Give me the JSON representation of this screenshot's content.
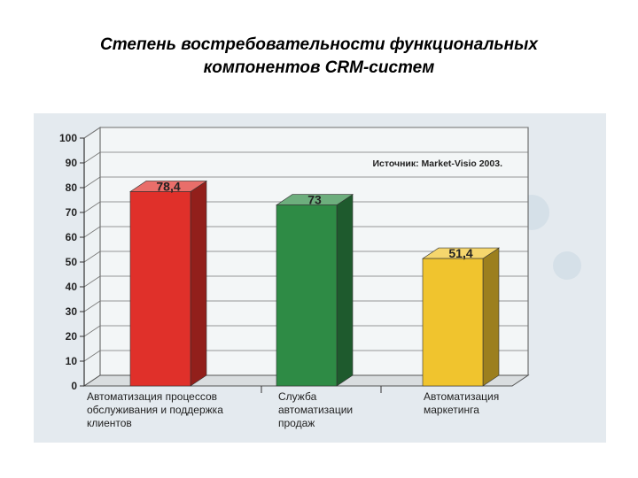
{
  "slide": {
    "title_line1": "Степень востребовательности функциональных",
    "title_line2": "компонентов CRM-систем"
  },
  "chart_data": {
    "type": "bar",
    "title": "",
    "source_note": "Источник: Market-Visio 2003.",
    "background_text": "CRM-систем",
    "categories": [
      [
        "Автоматизация процессов",
        "обслуживания и поддержка",
        "клиентов"
      ],
      [
        "Служба",
        "автоматизации",
        "продаж"
      ],
      [
        "Автоматизация",
        "маркетинга"
      ]
    ],
    "values": [
      78.4,
      73,
      51.4
    ],
    "value_labels": [
      "78,4",
      "73",
      "51,4"
    ],
    "colors": [
      "#e0302a",
      "#2e8b45",
      "#f0c42e"
    ],
    "yticks": [
      0,
      10,
      20,
      30,
      40,
      50,
      60,
      70,
      80,
      90,
      100
    ],
    "ylim": [
      0,
      100
    ],
    "grid": true,
    "xlabel": "",
    "ylabel": ""
  }
}
